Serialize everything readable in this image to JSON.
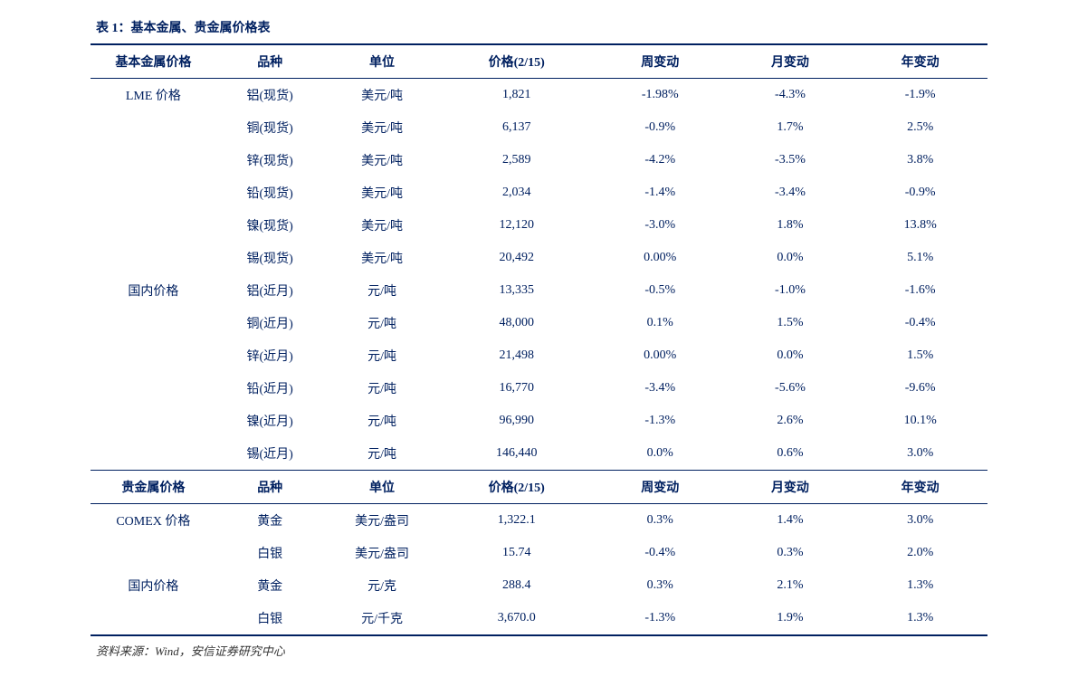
{
  "title": "表 1：基本金属、贵金属价格表",
  "source": "资料来源：Wind，安信证券研究中心",
  "colors": {
    "primary": "#002060",
    "background": "#ffffff",
    "source_text": "#333333"
  },
  "typography": {
    "title_fontsize": 14,
    "header_fontsize": 14,
    "cell_fontsize": 14,
    "source_fontsize": 13
  },
  "section1": {
    "headers": [
      "基本金属价格",
      "品种",
      "单位",
      "价格(2/15)",
      "周变动",
      "月变动",
      "年变动"
    ],
    "groups": [
      {
        "label": "LME 价格",
        "rows": [
          {
            "product": "铝(现货)",
            "unit": "美元/吨",
            "price": "1,821",
            "week": "-1.98%",
            "month": "-4.3%",
            "year": "-1.9%"
          },
          {
            "product": "铜(现货)",
            "unit": "美元/吨",
            "price": "6,137",
            "week": "-0.9%",
            "month": "1.7%",
            "year": "2.5%"
          },
          {
            "product": "锌(现货)",
            "unit": "美元/吨",
            "price": "2,589",
            "week": "-4.2%",
            "month": "-3.5%",
            "year": "3.8%"
          },
          {
            "product": "铅(现货)",
            "unit": "美元/吨",
            "price": "2,034",
            "week": "-1.4%",
            "month": "-3.4%",
            "year": "-0.9%"
          },
          {
            "product": "镍(现货)",
            "unit": "美元/吨",
            "price": "12,120",
            "week": "-3.0%",
            "month": "1.8%",
            "year": "13.8%"
          },
          {
            "product": "锡(现货)",
            "unit": "美元/吨",
            "price": "20,492",
            "week": "0.00%",
            "month": "0.0%",
            "year": "5.1%"
          }
        ]
      },
      {
        "label": "国内价格",
        "rows": [
          {
            "product": "铝(近月)",
            "unit": "元/吨",
            "price": "13,335",
            "week": "-0.5%",
            "month": "-1.0%",
            "year": "-1.6%"
          },
          {
            "product": "铜(近月)",
            "unit": "元/吨",
            "price": "48,000",
            "week": "0.1%",
            "month": "1.5%",
            "year": "-0.4%"
          },
          {
            "product": "锌(近月)",
            "unit": "元/吨",
            "price": "21,498",
            "week": "0.00%",
            "month": "0.0%",
            "year": "1.5%"
          },
          {
            "product": "铅(近月)",
            "unit": "元/吨",
            "price": "16,770",
            "week": "-3.4%",
            "month": "-5.6%",
            "year": "-9.6%"
          },
          {
            "product": "镍(近月)",
            "unit": "元/吨",
            "price": "96,990",
            "week": "-1.3%",
            "month": "2.6%",
            "year": "10.1%"
          },
          {
            "product": "锡(近月)",
            "unit": "元/吨",
            "price": "146,440",
            "week": "0.0%",
            "month": "0.6%",
            "year": "3.0%"
          }
        ]
      }
    ]
  },
  "section2": {
    "headers": [
      "贵金属价格",
      "品种",
      "单位",
      "价格(2/15)",
      "周变动",
      "月变动",
      "年变动"
    ],
    "groups": [
      {
        "label": "COMEX 价格",
        "rows": [
          {
            "product": "黄金",
            "unit": "美元/盎司",
            "price": "1,322.1",
            "week": "0.3%",
            "month": "1.4%",
            "year": "3.0%"
          },
          {
            "product": "白银",
            "unit": "美元/盎司",
            "price": "15.74",
            "week": "-0.4%",
            "month": "0.3%",
            "year": "2.0%"
          }
        ]
      },
      {
        "label": "国内价格",
        "rows": [
          {
            "product": "黄金",
            "unit": "元/克",
            "price": "288.4",
            "week": "0.3%",
            "month": "2.1%",
            "year": "1.3%"
          },
          {
            "product": "白银",
            "unit": "元/千克",
            "price": "3,670.0",
            "week": "-1.3%",
            "month": "1.9%",
            "year": "1.3%"
          }
        ]
      }
    ]
  }
}
